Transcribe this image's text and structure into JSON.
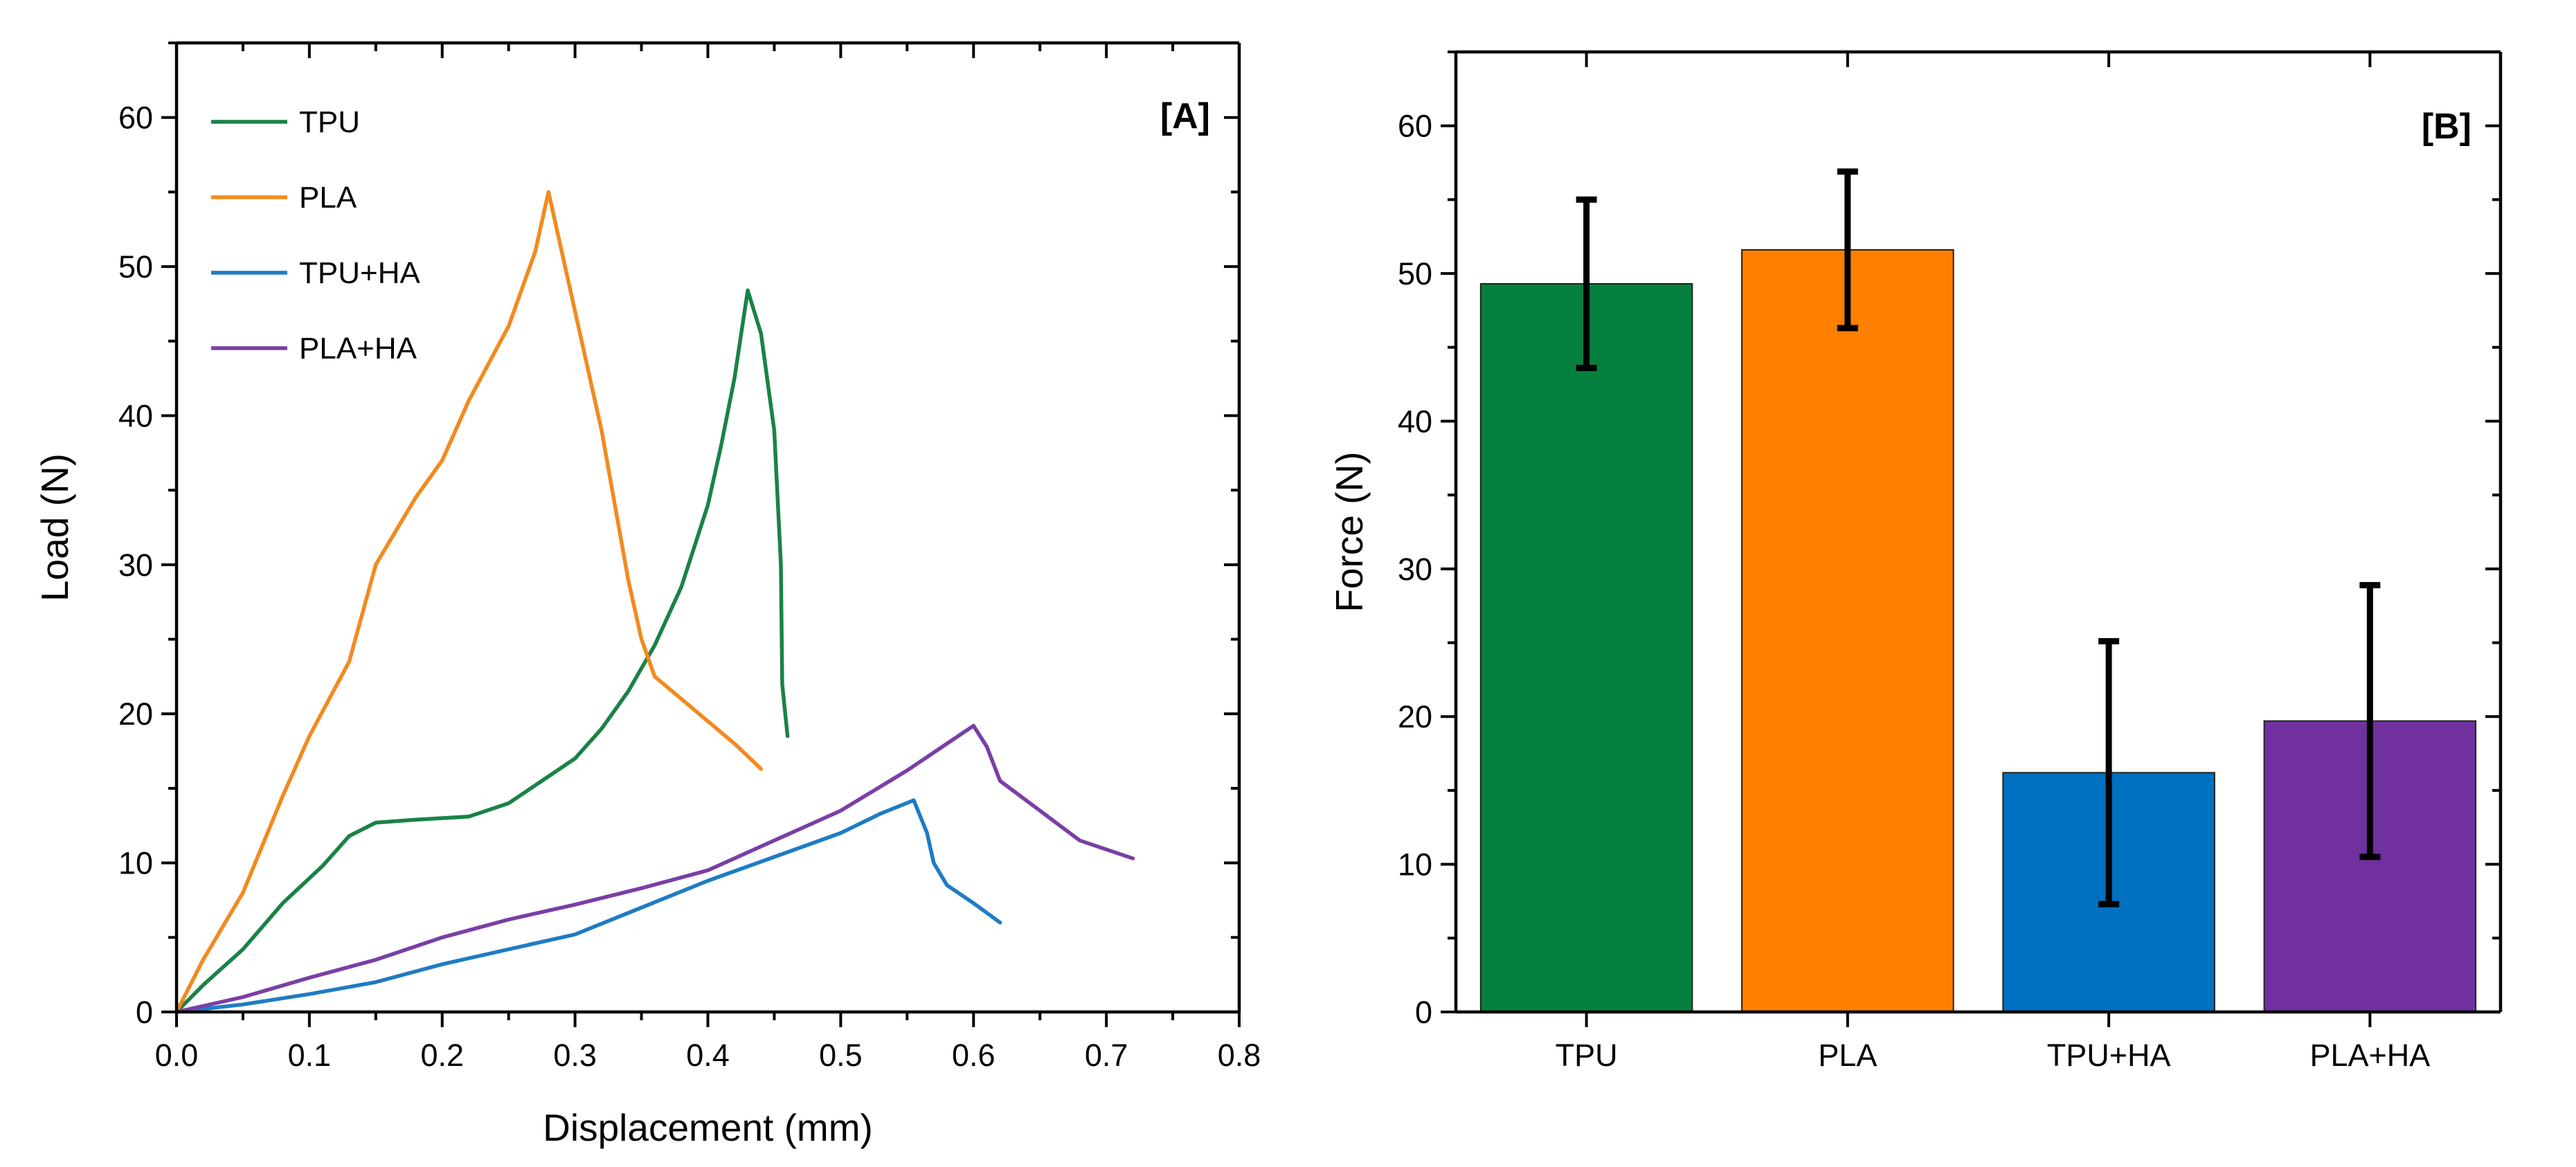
{
  "chart_data": [
    {
      "type": "line",
      "panel_label": "[A]",
      "xlabel": "Displacement (mm)",
      "ylabel": "Load (N)",
      "xlim": [
        0,
        0.8
      ],
      "ylim": [
        0,
        65
      ],
      "xticks": [
        0.0,
        0.1,
        0.2,
        0.3,
        0.4,
        0.5,
        0.6,
        0.7,
        0.8
      ],
      "xtick_labels": [
        "0.0",
        "0.1",
        "0.2",
        "0.3",
        "0.4",
        "0.5",
        "0.6",
        "0.7",
        "0.8"
      ],
      "yticks": [
        0,
        10,
        20,
        30,
        40,
        50,
        60
      ],
      "ytick_labels": [
        "0",
        "10",
        "20",
        "30",
        "40",
        "50",
        "60"
      ],
      "grid": false,
      "legend_position": "top-left",
      "series": [
        {
          "name": "TPU",
          "color": "#1a8246",
          "points": [
            [
              0,
              0
            ],
            [
              0.02,
              1.8
            ],
            [
              0.05,
              4.2
            ],
            [
              0.08,
              7.3
            ],
            [
              0.11,
              9.8
            ],
            [
              0.13,
              11.8
            ],
            [
              0.15,
              12.7
            ],
            [
              0.18,
              12.9
            ],
            [
              0.2,
              13.0
            ],
            [
              0.22,
              13.1
            ],
            [
              0.25,
              14.0
            ],
            [
              0.28,
              15.8
            ],
            [
              0.3,
              17.0
            ],
            [
              0.32,
              19.0
            ],
            [
              0.34,
              21.5
            ],
            [
              0.36,
              24.6
            ],
            [
              0.38,
              28.5
            ],
            [
              0.4,
              34.0
            ],
            [
              0.41,
              38.0
            ],
            [
              0.42,
              42.5
            ],
            [
              0.43,
              48.4
            ],
            [
              0.44,
              45.5
            ],
            [
              0.45,
              39.0
            ],
            [
              0.455,
              30.0
            ],
            [
              0.456,
              22.0
            ],
            [
              0.46,
              18.5
            ]
          ]
        },
        {
          "name": "PLA",
          "color": "#f28a1f",
          "points": [
            [
              0,
              0
            ],
            [
              0.02,
              3.5
            ],
            [
              0.05,
              8.0
            ],
            [
              0.08,
              14.5
            ],
            [
              0.1,
              18.5
            ],
            [
              0.13,
              23.5
            ],
            [
              0.15,
              30.0
            ],
            [
              0.18,
              34.5
            ],
            [
              0.2,
              37.0
            ],
            [
              0.22,
              41.0
            ],
            [
              0.25,
              46.0
            ],
            [
              0.27,
              51.0
            ],
            [
              0.28,
              55.0
            ],
            [
              0.3,
              47.0
            ],
            [
              0.32,
              39.0
            ],
            [
              0.34,
              29.0
            ],
            [
              0.35,
              25.0
            ],
            [
              0.36,
              22.5
            ],
            [
              0.38,
              21.0
            ],
            [
              0.4,
              19.5
            ],
            [
              0.42,
              18.0
            ],
            [
              0.44,
              16.3
            ]
          ]
        },
        {
          "name": "TPU+HA",
          "color": "#1e7cc4",
          "points": [
            [
              0,
              0
            ],
            [
              0.05,
              0.5
            ],
            [
              0.1,
              1.2
            ],
            [
              0.15,
              2.0
            ],
            [
              0.2,
              3.2
            ],
            [
              0.25,
              4.2
            ],
            [
              0.3,
              5.2
            ],
            [
              0.35,
              7.0
            ],
            [
              0.4,
              8.8
            ],
            [
              0.45,
              10.4
            ],
            [
              0.5,
              12.0
            ],
            [
              0.53,
              13.3
            ],
            [
              0.555,
              14.2
            ],
            [
              0.565,
              12.0
            ],
            [
              0.57,
              10.0
            ],
            [
              0.58,
              8.5
            ],
            [
              0.6,
              7.3
            ],
            [
              0.62,
              6.0
            ]
          ]
        },
        {
          "name": "PLA+HA",
          "color": "#7a3fa6",
          "points": [
            [
              0,
              0
            ],
            [
              0.05,
              1.0
            ],
            [
              0.1,
              2.3
            ],
            [
              0.15,
              3.5
            ],
            [
              0.2,
              5.0
            ],
            [
              0.25,
              6.2
            ],
            [
              0.3,
              7.2
            ],
            [
              0.35,
              8.3
            ],
            [
              0.4,
              9.5
            ],
            [
              0.45,
              11.5
            ],
            [
              0.5,
              13.5
            ],
            [
              0.55,
              16.2
            ],
            [
              0.58,
              18.0
            ],
            [
              0.6,
              19.2
            ],
            [
              0.61,
              17.8
            ],
            [
              0.62,
              15.5
            ],
            [
              0.65,
              13.5
            ],
            [
              0.68,
              11.5
            ],
            [
              0.72,
              10.3
            ]
          ]
        }
      ]
    },
    {
      "type": "bar",
      "panel_label": "[B]",
      "xlabel": "",
      "ylabel": "Force (N)",
      "ylim": [
        0,
        65
      ],
      "yticks": [
        0,
        10,
        20,
        30,
        40,
        50,
        60
      ],
      "ytick_labels": [
        "0",
        "10",
        "20",
        "30",
        "40",
        "50",
        "60"
      ],
      "grid": false,
      "categories": [
        "TPU",
        "PLA",
        "TPU+HA",
        "PLA+HA"
      ],
      "values": [
        49.3,
        51.6,
        16.2,
        19.7
      ],
      "error_low": [
        43.6,
        46.3,
        7.3,
        10.5
      ],
      "error_high": [
        55.0,
        56.9,
        25.1,
        28.9
      ],
      "colors": [
        "#06803f",
        "#ff7f00",
        "#0070c0",
        "#7030a0"
      ]
    }
  ]
}
